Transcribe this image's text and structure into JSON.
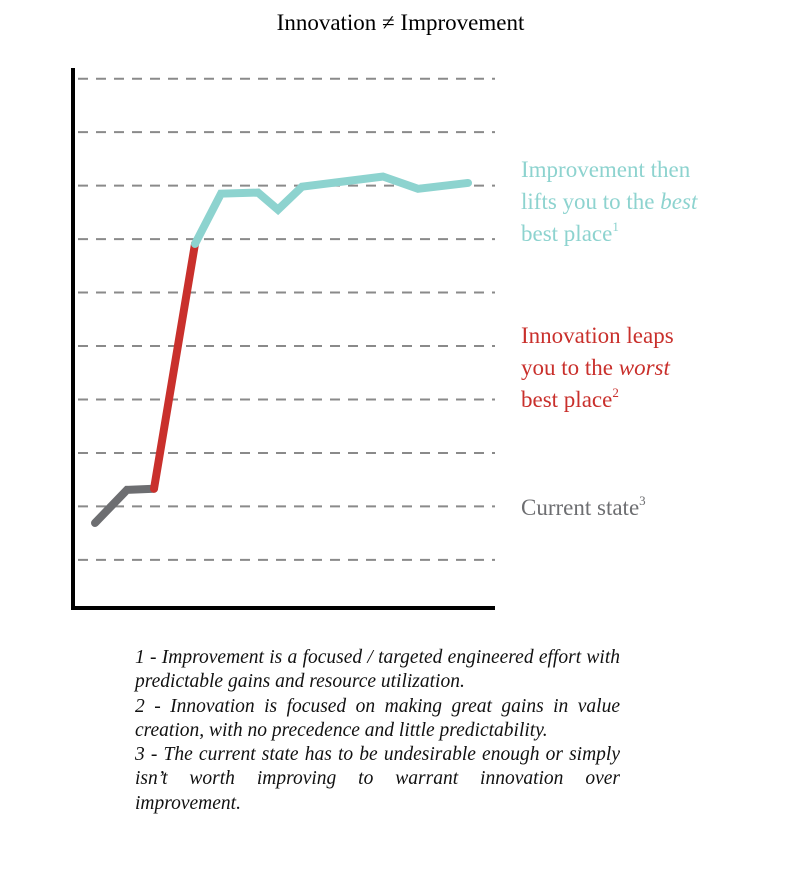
{
  "chart_data": {
    "type": "line",
    "title": "Innovation ≠ Improvement",
    "xlabel": "",
    "ylabel": "",
    "xlim": [
      0,
      42.2
    ],
    "ylim": [
      0.1,
      10.2
    ],
    "grid": {
      "horizontal": true,
      "style": "dashed",
      "lines": [
        1,
        2,
        3,
        4,
        5,
        6,
        7,
        8,
        9,
        10
      ]
    },
    "series": [
      {
        "key": "current",
        "color": "#6d6e71",
        "points": [
          [
            2.2,
            1.69
          ],
          [
            5.4,
            2.31
          ],
          [
            8.1,
            2.33
          ]
        ]
      },
      {
        "key": "innovation",
        "color": "#c9302c",
        "points": [
          [
            8.1,
            2.33
          ],
          [
            12.2,
            6.91
          ]
        ]
      },
      {
        "key": "improvement",
        "color": "#8dd3cf",
        "points": [
          [
            12.2,
            6.91
          ],
          [
            14.8,
            7.85
          ],
          [
            18.5,
            7.87
          ],
          [
            20.5,
            7.55
          ],
          [
            22.9,
            7.98
          ],
          [
            31.0,
            8.17
          ],
          [
            34.5,
            7.94
          ],
          [
            39.5,
            8.05
          ]
        ]
      }
    ],
    "annotations": {
      "improvement": {
        "color": "#8dd3cf",
        "line1": "Improvement then",
        "line2a": "lifts you to the ",
        "line2b": "best",
        "line3": "best place",
        "sup": "1"
      },
      "innovation": {
        "color": "#c9302c",
        "line1": "Innovation leaps",
        "line2a": "you to the ",
        "line2b": "worst",
        "line3": "best place",
        "sup": "2"
      },
      "current": {
        "color": "#6d6e71",
        "line1": "Current state",
        "sup": "3"
      }
    }
  },
  "footnotes": [
    "1 - Improvement is a focused / targeted engineered effort with predictable gains and resource utilization.",
    "2 - Innovation is focused on making great gains in value creation, with no precedence and little predictability.",
    "3 - The current state has to be undesirable enough or simply isn’t worth improving to warrant innovation over improvement."
  ]
}
